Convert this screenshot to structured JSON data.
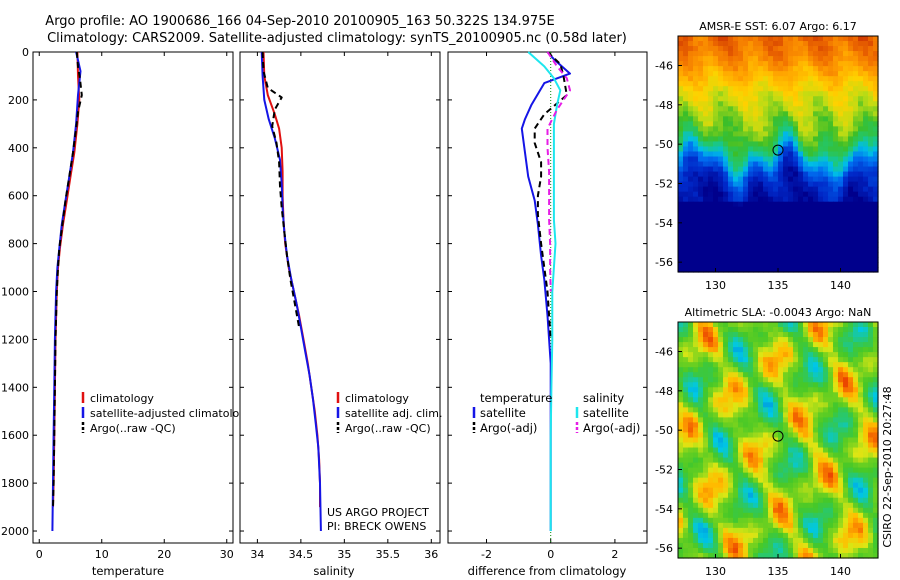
{
  "figure": {
    "title_line1": "Argo profile: AO 1900686_166 04-Sep-2010 20100905_163 50.322S 134.975E",
    "title_line2": "Climatology: CARS2009. Satellite-adjusted climatology: synTS_20100905.nc (0.58d later)",
    "credit": "CSIRO 22-Sep-2010 20:27:48"
  },
  "colors": {
    "climatology": "#e01010",
    "satellite_adjusted": "#1515e6",
    "argo": "#000000",
    "salinity_satellite": "#1ee6ee",
    "salinity_argo": "#e61ee6"
  },
  "chart_data": [
    {
      "type": "line",
      "xlabel": "temperature",
      "ylabel": "",
      "xlim": [
        -1,
        31
      ],
      "ylim": [
        2050,
        0
      ],
      "y_reversed": true,
      "xticks": [
        "0",
        "10",
        "20",
        "30"
      ],
      "yticks": [
        "0",
        "200",
        "400",
        "600",
        "800",
        "1000",
        "1200",
        "1400",
        "1600",
        "1800",
        "2000"
      ],
      "legend": [
        "climatology",
        "satellite-adjusted climatology",
        "Argo(..raw -QC)"
      ],
      "legend_placement": "lower-right",
      "series": [
        {
          "name": "climatology",
          "color": "#e01010",
          "dash": "solid",
          "points": [
            [
              6.1,
              0
            ],
            [
              6.2,
              100
            ],
            [
              6.4,
              200
            ],
            [
              6.1,
              300
            ],
            [
              5.6,
              420
            ],
            [
              5.0,
              520
            ],
            [
              4.4,
              620
            ],
            [
              3.8,
              720
            ],
            [
              3.3,
              820
            ],
            [
              3.0,
              900
            ],
            [
              2.8,
              1000
            ],
            [
              2.6,
              1200
            ],
            [
              2.5,
              1400
            ],
            [
              2.4,
              1600
            ],
            [
              2.3,
              1800
            ],
            [
              2.2,
              1900
            ]
          ]
        },
        {
          "name": "satellite-adjusted climatology",
          "color": "#1515e6",
          "dash": "solid",
          "points": [
            [
              5.9,
              0
            ],
            [
              6.6,
              80
            ],
            [
              6.2,
              180
            ],
            [
              5.9,
              300
            ],
            [
              5.4,
              420
            ],
            [
              4.8,
              520
            ],
            [
              4.2,
              620
            ],
            [
              3.6,
              720
            ],
            [
              3.2,
              820
            ],
            [
              2.9,
              900
            ],
            [
              2.7,
              1000
            ],
            [
              2.5,
              1200
            ],
            [
              2.4,
              1400
            ],
            [
              2.3,
              1600
            ],
            [
              2.2,
              1800
            ],
            [
              2.1,
              2000
            ]
          ]
        },
        {
          "name": "Argo(..raw -QC)",
          "color": "#000000",
          "dash": "dashed",
          "points": [
            [
              6.0,
              0
            ],
            [
              6.2,
              60
            ],
            [
              6.5,
              110
            ],
            [
              6.8,
              180
            ],
            [
              6.2,
              250
            ],
            [
              5.9,
              320
            ],
            [
              5.4,
              420
            ],
            [
              4.8,
              520
            ],
            [
              4.2,
              620
            ],
            [
              3.7,
              720
            ],
            [
              3.2,
              820
            ],
            [
              3.0,
              900
            ],
            [
              2.8,
              1000
            ],
            [
              2.6,
              1200
            ],
            [
              2.5,
              1400
            ],
            [
              2.4,
              1600
            ],
            [
              2.3,
              1800
            ],
            [
              2.2,
              1900
            ]
          ]
        }
      ]
    },
    {
      "type": "line",
      "xlabel": "salinity",
      "ylabel": "",
      "xlim": [
        33.8,
        36.1
      ],
      "ylim": [
        2050,
        0
      ],
      "y_reversed": true,
      "xticks": [
        "34",
        "34.5",
        "35",
        "35.5",
        "36"
      ],
      "legend": [
        "climatology",
        "satellite adj. clim.",
        "Argo(..raw -QC)"
      ],
      "legend_placement": "lower-right",
      "annotation": [
        "US ARGO PROJECT",
        "PI: BRECK OWENS"
      ],
      "series": [
        {
          "name": "climatology",
          "color": "#e01010",
          "dash": "solid",
          "points": [
            [
              34.07,
              0
            ],
            [
              34.08,
              100
            ],
            [
              34.12,
              180
            ],
            [
              34.2,
              260
            ],
            [
              34.25,
              320
            ],
            [
              34.28,
              400
            ],
            [
              34.29,
              500
            ],
            [
              34.29,
              600
            ],
            [
              34.3,
              700
            ],
            [
              34.32,
              800
            ],
            [
              34.36,
              900
            ],
            [
              34.42,
              1000
            ],
            [
              34.48,
              1100
            ],
            [
              34.53,
              1200
            ],
            [
              34.58,
              1300
            ],
            [
              34.62,
              1400
            ],
            [
              34.66,
              1500
            ],
            [
              34.69,
              1600
            ],
            [
              34.71,
              1700
            ],
            [
              34.72,
              1800
            ],
            [
              34.72,
              1900
            ]
          ]
        },
        {
          "name": "satellite adj. clim.",
          "color": "#1515e6",
          "dash": "solid",
          "points": [
            [
              34.05,
              0
            ],
            [
              34.06,
              100
            ],
            [
              34.08,
              200
            ],
            [
              34.13,
              280
            ],
            [
              34.2,
              360
            ],
            [
              34.26,
              450
            ],
            [
              34.28,
              550
            ],
            [
              34.29,
              650
            ],
            [
              34.31,
              750
            ],
            [
              34.34,
              850
            ],
            [
              34.39,
              950
            ],
            [
              34.45,
              1050
            ],
            [
              34.5,
              1150
            ],
            [
              34.55,
              1250
            ],
            [
              34.6,
              1350
            ],
            [
              34.64,
              1450
            ],
            [
              34.67,
              1550
            ],
            [
              34.7,
              1650
            ],
            [
              34.72,
              1800
            ],
            [
              34.73,
              2000
            ]
          ]
        },
        {
          "name": "Argo(..raw -QC)",
          "color": "#000000",
          "dash": "dashed",
          "points": [
            [
              34.06,
              0
            ],
            [
              34.07,
              80
            ],
            [
              34.12,
              150
            ],
            [
              34.28,
              190
            ],
            [
              34.2,
              240
            ],
            [
              34.17,
              310
            ],
            [
              34.22,
              380
            ],
            [
              34.25,
              460
            ],
            [
              34.26,
              560
            ],
            [
              34.28,
              650
            ],
            [
              34.31,
              750
            ],
            [
              34.34,
              850
            ],
            [
              34.38,
              950
            ],
            [
              34.43,
              1050
            ],
            [
              34.48,
              1150
            ]
          ]
        }
      ]
    },
    {
      "type": "line",
      "xlabel": "difference from climatology",
      "ylabel": "",
      "xlim": [
        -3.2,
        3.0
      ],
      "ylim": [
        2050,
        0
      ],
      "y_reversed": true,
      "xticks": [
        "-2",
        "0",
        "2"
      ],
      "legend_groups": [
        {
          "header": "temperature",
          "entries": [
            "satellite",
            "Argo(-adj)"
          ]
        },
        {
          "header": "salinity",
          "entries": [
            "satellite",
            "Argo(-adj)"
          ]
        }
      ],
      "legend_placement": "lower-center",
      "series": [
        {
          "name": "temperature satellite",
          "color": "#1515e6",
          "dash": "solid",
          "points": [
            [
              -0.1,
              0
            ],
            [
              0.1,
              30
            ],
            [
              0.6,
              90
            ],
            [
              -0.2,
              130
            ],
            [
              -0.6,
              220
            ],
            [
              -0.8,
              280
            ],
            [
              -0.9,
              320
            ],
            [
              -0.8,
              420
            ],
            [
              -0.7,
              520
            ],
            [
              -0.5,
              620
            ],
            [
              -0.4,
              720
            ],
            [
              -0.3,
              850
            ],
            [
              -0.2,
              950
            ],
            [
              -0.1,
              1100
            ],
            [
              0.0,
              1300
            ],
            [
              0.0,
              1600
            ],
            [
              0.0,
              2000
            ]
          ]
        },
        {
          "name": "temperature Argo(-adj)",
          "color": "#000000",
          "dash": "dashed",
          "points": [
            [
              -0.1,
              0
            ],
            [
              0.3,
              50
            ],
            [
              0.4,
              100
            ],
            [
              0.5,
              180
            ],
            [
              -0.2,
              260
            ],
            [
              -0.5,
              320
            ],
            [
              -0.5,
              380
            ],
            [
              -0.3,
              460
            ],
            [
              -0.3,
              520
            ],
            [
              -0.4,
              600
            ],
            [
              -0.4,
              680
            ],
            [
              -0.3,
              800
            ],
            [
              -0.2,
              900
            ],
            [
              -0.1,
              1000
            ],
            [
              -0.05,
              1100
            ],
            [
              0.0,
              1200
            ]
          ]
        },
        {
          "name": "salinity satellite",
          "color": "#1ee6ee",
          "dash": "solid",
          "points": [
            [
              -0.7,
              0
            ],
            [
              -0.2,
              60
            ],
            [
              0.1,
              110
            ],
            [
              0.3,
              160
            ],
            [
              0.2,
              220
            ],
            [
              0.1,
              300
            ],
            [
              0.1,
              400
            ],
            [
              0.1,
              500
            ],
            [
              0.1,
              600
            ],
            [
              0.1,
              700
            ],
            [
              0.15,
              800
            ],
            [
              0.1,
              900
            ],
            [
              0.05,
              1000
            ],
            [
              0.05,
              1200
            ],
            [
              0.02,
              1400
            ],
            [
              0.0,
              1600
            ],
            [
              0.0,
              2000
            ]
          ]
        },
        {
          "name": "salinity Argo(-adj)",
          "color": "#e61ee6",
          "dash": "dashed",
          "points": [
            [
              -0.1,
              0
            ],
            [
              0.2,
              60
            ],
            [
              0.5,
              110
            ],
            [
              0.6,
              160
            ],
            [
              0.2,
              240
            ],
            [
              -0.1,
              320
            ],
            [
              -0.1,
              400
            ],
            [
              -0.05,
              500
            ],
            [
              -0.05,
              600
            ],
            [
              -0.05,
              700
            ],
            [
              -0.02,
              800
            ],
            [
              -0.02,
              900
            ],
            [
              0.0,
              1000
            ]
          ]
        }
      ]
    },
    {
      "type": "heatmap",
      "title": "AMSR-E SST: 6.07 Argo: 6.17",
      "xlim": [
        127,
        143
      ],
      "ylim": [
        -56.5,
        -44.5
      ],
      "xticks": [
        "130",
        "135",
        "140"
      ],
      "yticks": [
        "-46",
        "-48",
        "-50",
        "-52",
        "-54",
        "-56"
      ],
      "marker": {
        "x": 135.0,
        "y": -50.3
      }
    },
    {
      "type": "heatmap",
      "title": "Altimetric SLA: -0.0043 Argo: NaN",
      "xlim": [
        127,
        143
      ],
      "ylim": [
        -56.5,
        -44.5
      ],
      "xticks": [
        "130",
        "135",
        "140"
      ],
      "yticks": [
        "-46",
        "-48",
        "-50",
        "-52",
        "-54",
        "-56"
      ],
      "marker": {
        "x": 135.0,
        "y": -50.3
      }
    }
  ]
}
